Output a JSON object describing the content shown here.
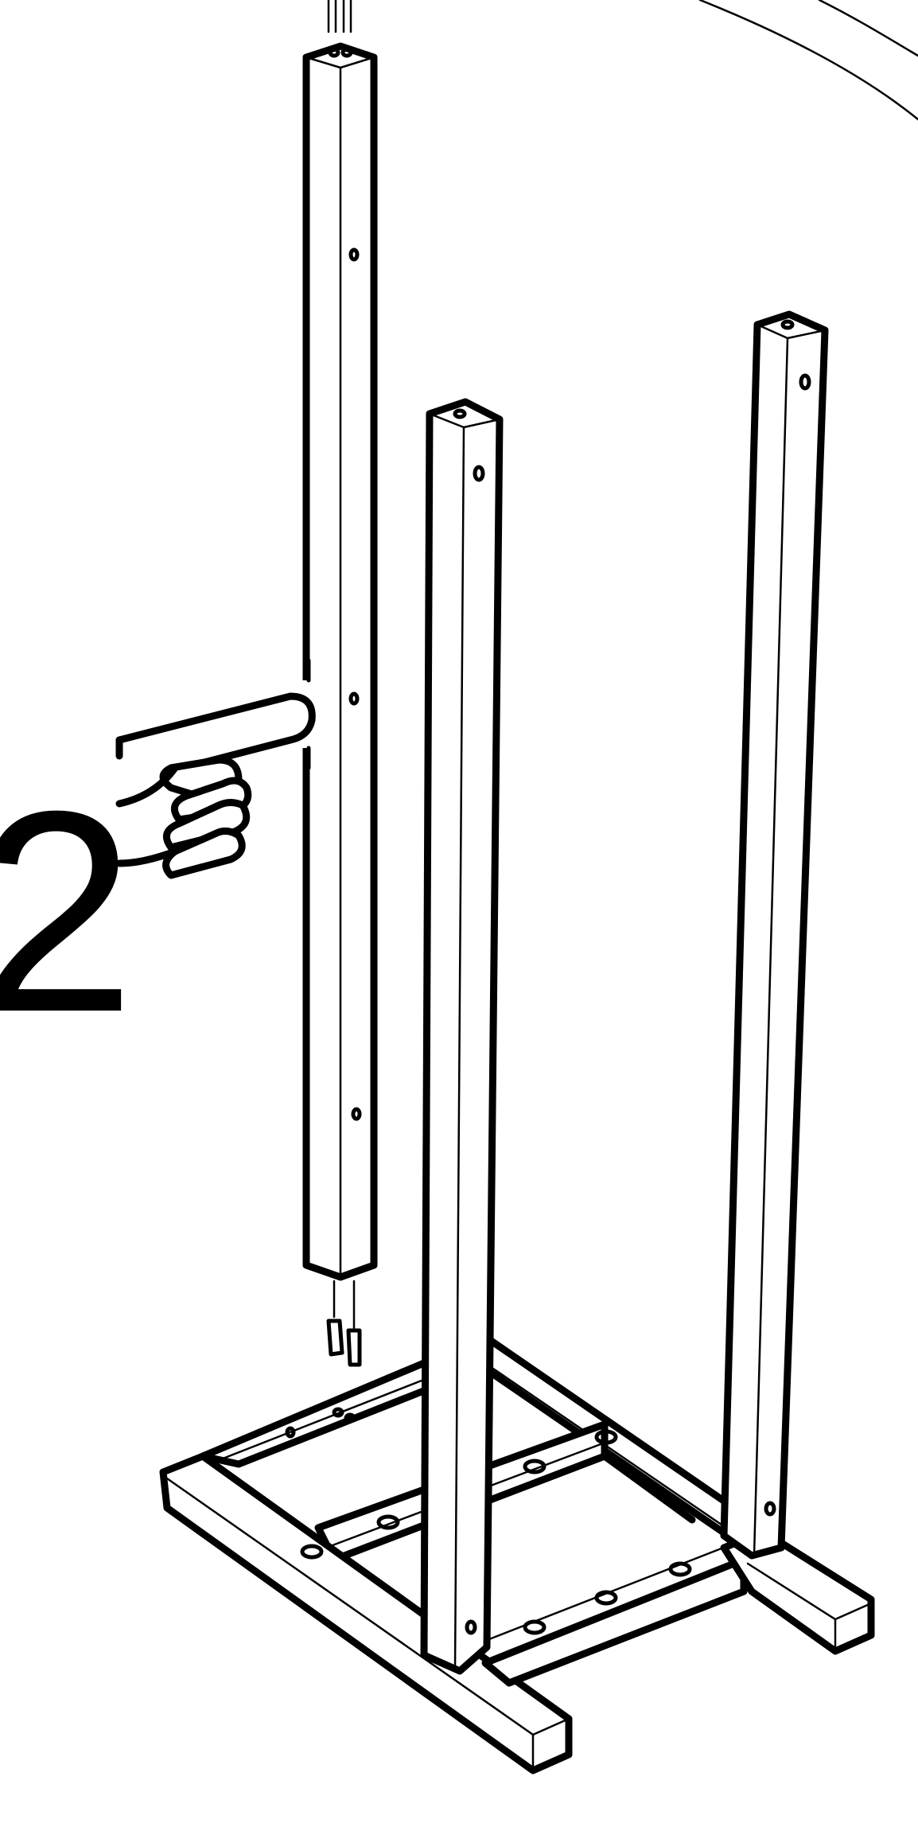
{
  "instruction": {
    "step_number": "2"
  },
  "icons": {
    "hand": "pointing-hand-icon",
    "callout": "detail-callout-circle",
    "pin": "dowel-pin"
  }
}
